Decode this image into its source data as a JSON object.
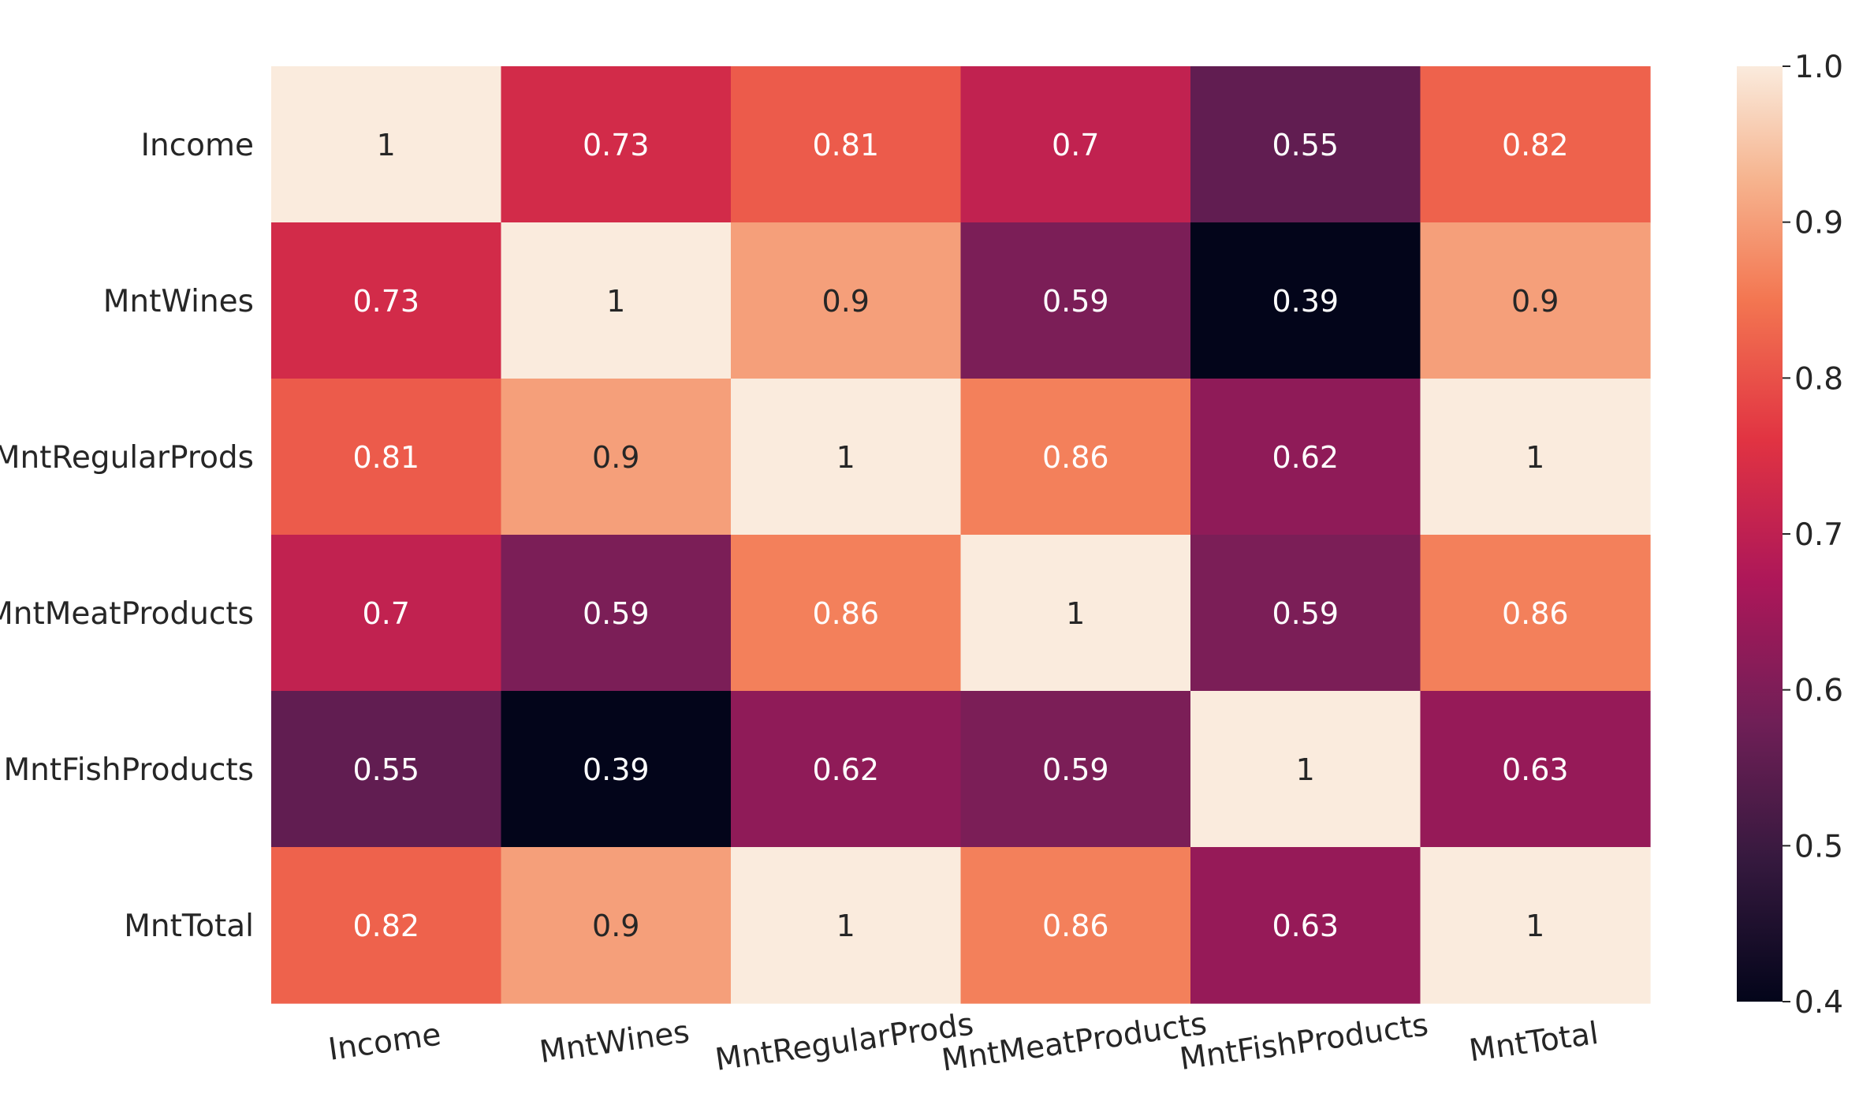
{
  "chart_data": {
    "type": "heatmap",
    "title": "",
    "xlabel": "",
    "ylabel": "",
    "rows": [
      "Income",
      "MntWines",
      "MntRegularProds",
      "MntMeatProducts",
      "MntFishProducts",
      "MntTotal"
    ],
    "columns": [
      "Income",
      "MntWines",
      "MntRegularProds",
      "MntMeatProducts",
      "MntFishProducts",
      "MntTotal"
    ],
    "values": [
      [
        1,
        0.73,
        0.81,
        0.7,
        0.55,
        0.82
      ],
      [
        0.73,
        1,
        0.9,
        0.59,
        0.39,
        0.9
      ],
      [
        0.81,
        0.9,
        1,
        0.86,
        0.62,
        1
      ],
      [
        0.7,
        0.59,
        0.86,
        1,
        0.59,
        0.86
      ],
      [
        0.55,
        0.39,
        0.62,
        0.59,
        1,
        0.63
      ],
      [
        0.82,
        0.9,
        1,
        0.86,
        0.63,
        1
      ]
    ],
    "annotations": [
      [
        "1",
        "0.73",
        "0.81",
        "0.7",
        "0.55",
        "0.82"
      ],
      [
        "0.73",
        "1",
        "0.9",
        "0.59",
        "0.39",
        "0.9"
      ],
      [
        "0.81",
        "0.9",
        "1",
        "0.86",
        "0.62",
        "1"
      ],
      [
        "0.7",
        "0.59",
        "0.86",
        "1",
        "0.59",
        "0.86"
      ],
      [
        "0.55",
        "0.39",
        "0.62",
        "0.59",
        "1",
        "0.63"
      ],
      [
        "0.82",
        "0.9",
        "1",
        "0.86",
        "0.63",
        "1"
      ]
    ],
    "colorbar": {
      "range": [
        0.39,
        1.0
      ],
      "ticks": [
        0.4,
        0.5,
        0.6,
        0.7,
        0.8,
        0.9,
        1.0
      ],
      "tick_labels": [
        "0.4",
        "0.5",
        "0.6",
        "0.7",
        "0.8",
        "0.9",
        "1.0"
      ],
      "colormap": "rocket"
    }
  }
}
